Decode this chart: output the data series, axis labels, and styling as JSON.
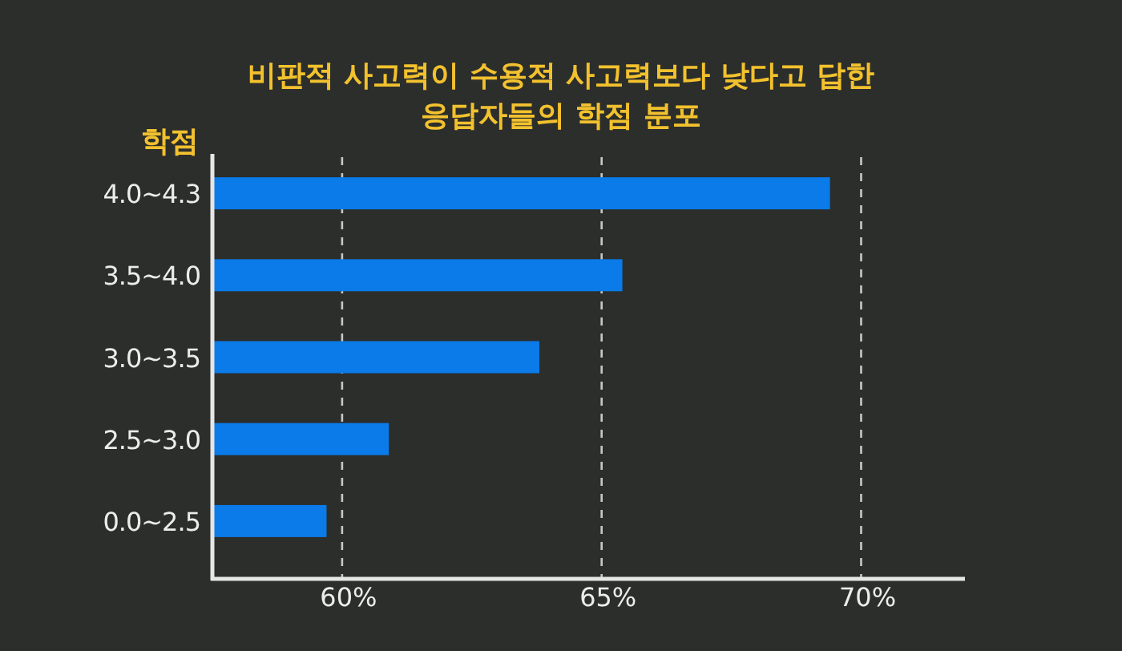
{
  "chart_data": {
    "type": "bar",
    "orientation": "horizontal",
    "title": "비판적 사고력이 수용적 사고력보다 낮다고 답한\n응답자들의 학점 분포",
    "ylabel": "학점",
    "categories": [
      "4.0~4.3",
      "3.5~4.0",
      "3.0~3.5",
      "2.5~3.0",
      "0.0~2.5"
    ],
    "values": [
      69.4,
      65.4,
      63.8,
      60.9,
      59.7
    ],
    "color": "#0a7be8",
    "xlim": [
      57.5,
      72
    ],
    "xticks": [
      {
        "value": 60,
        "label": "60%"
      },
      {
        "value": 65,
        "label": "65%"
      },
      {
        "value": 70,
        "label": "70%"
      }
    ],
    "grid": "x"
  }
}
